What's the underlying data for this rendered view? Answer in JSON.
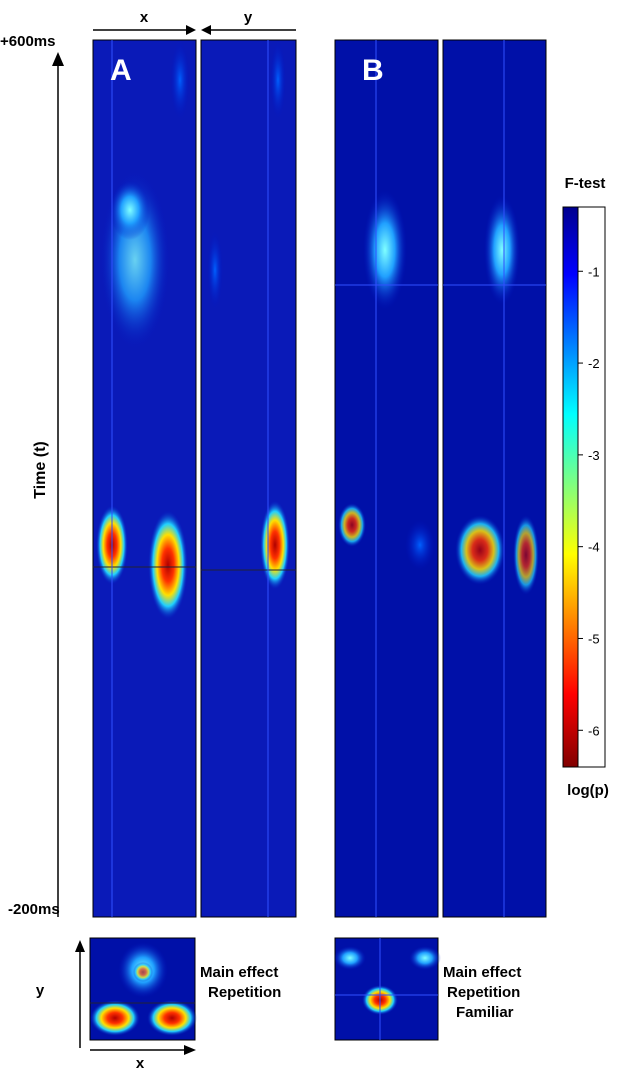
{
  "panel_a": {
    "label": "A",
    "x_axis": "x",
    "y_axis": "y",
    "time_top": "+600ms",
    "time_bottom": "-200ms",
    "time_axis": "Time (t)",
    "inset_caption": [
      "Main effect",
      "Repetition"
    ],
    "inset_x": "x",
    "inset_y": "y"
  },
  "panel_b": {
    "label": "B",
    "inset_caption": [
      "Main effect",
      "Repetition",
      "Familiar"
    ]
  },
  "colorbar": {
    "title": "F-test",
    "label": "log(p)",
    "lim": [
      -0.3,
      -6.4
    ],
    "ticks": [
      -1,
      -2,
      -3,
      -4,
      -5,
      -6
    ]
  }
}
